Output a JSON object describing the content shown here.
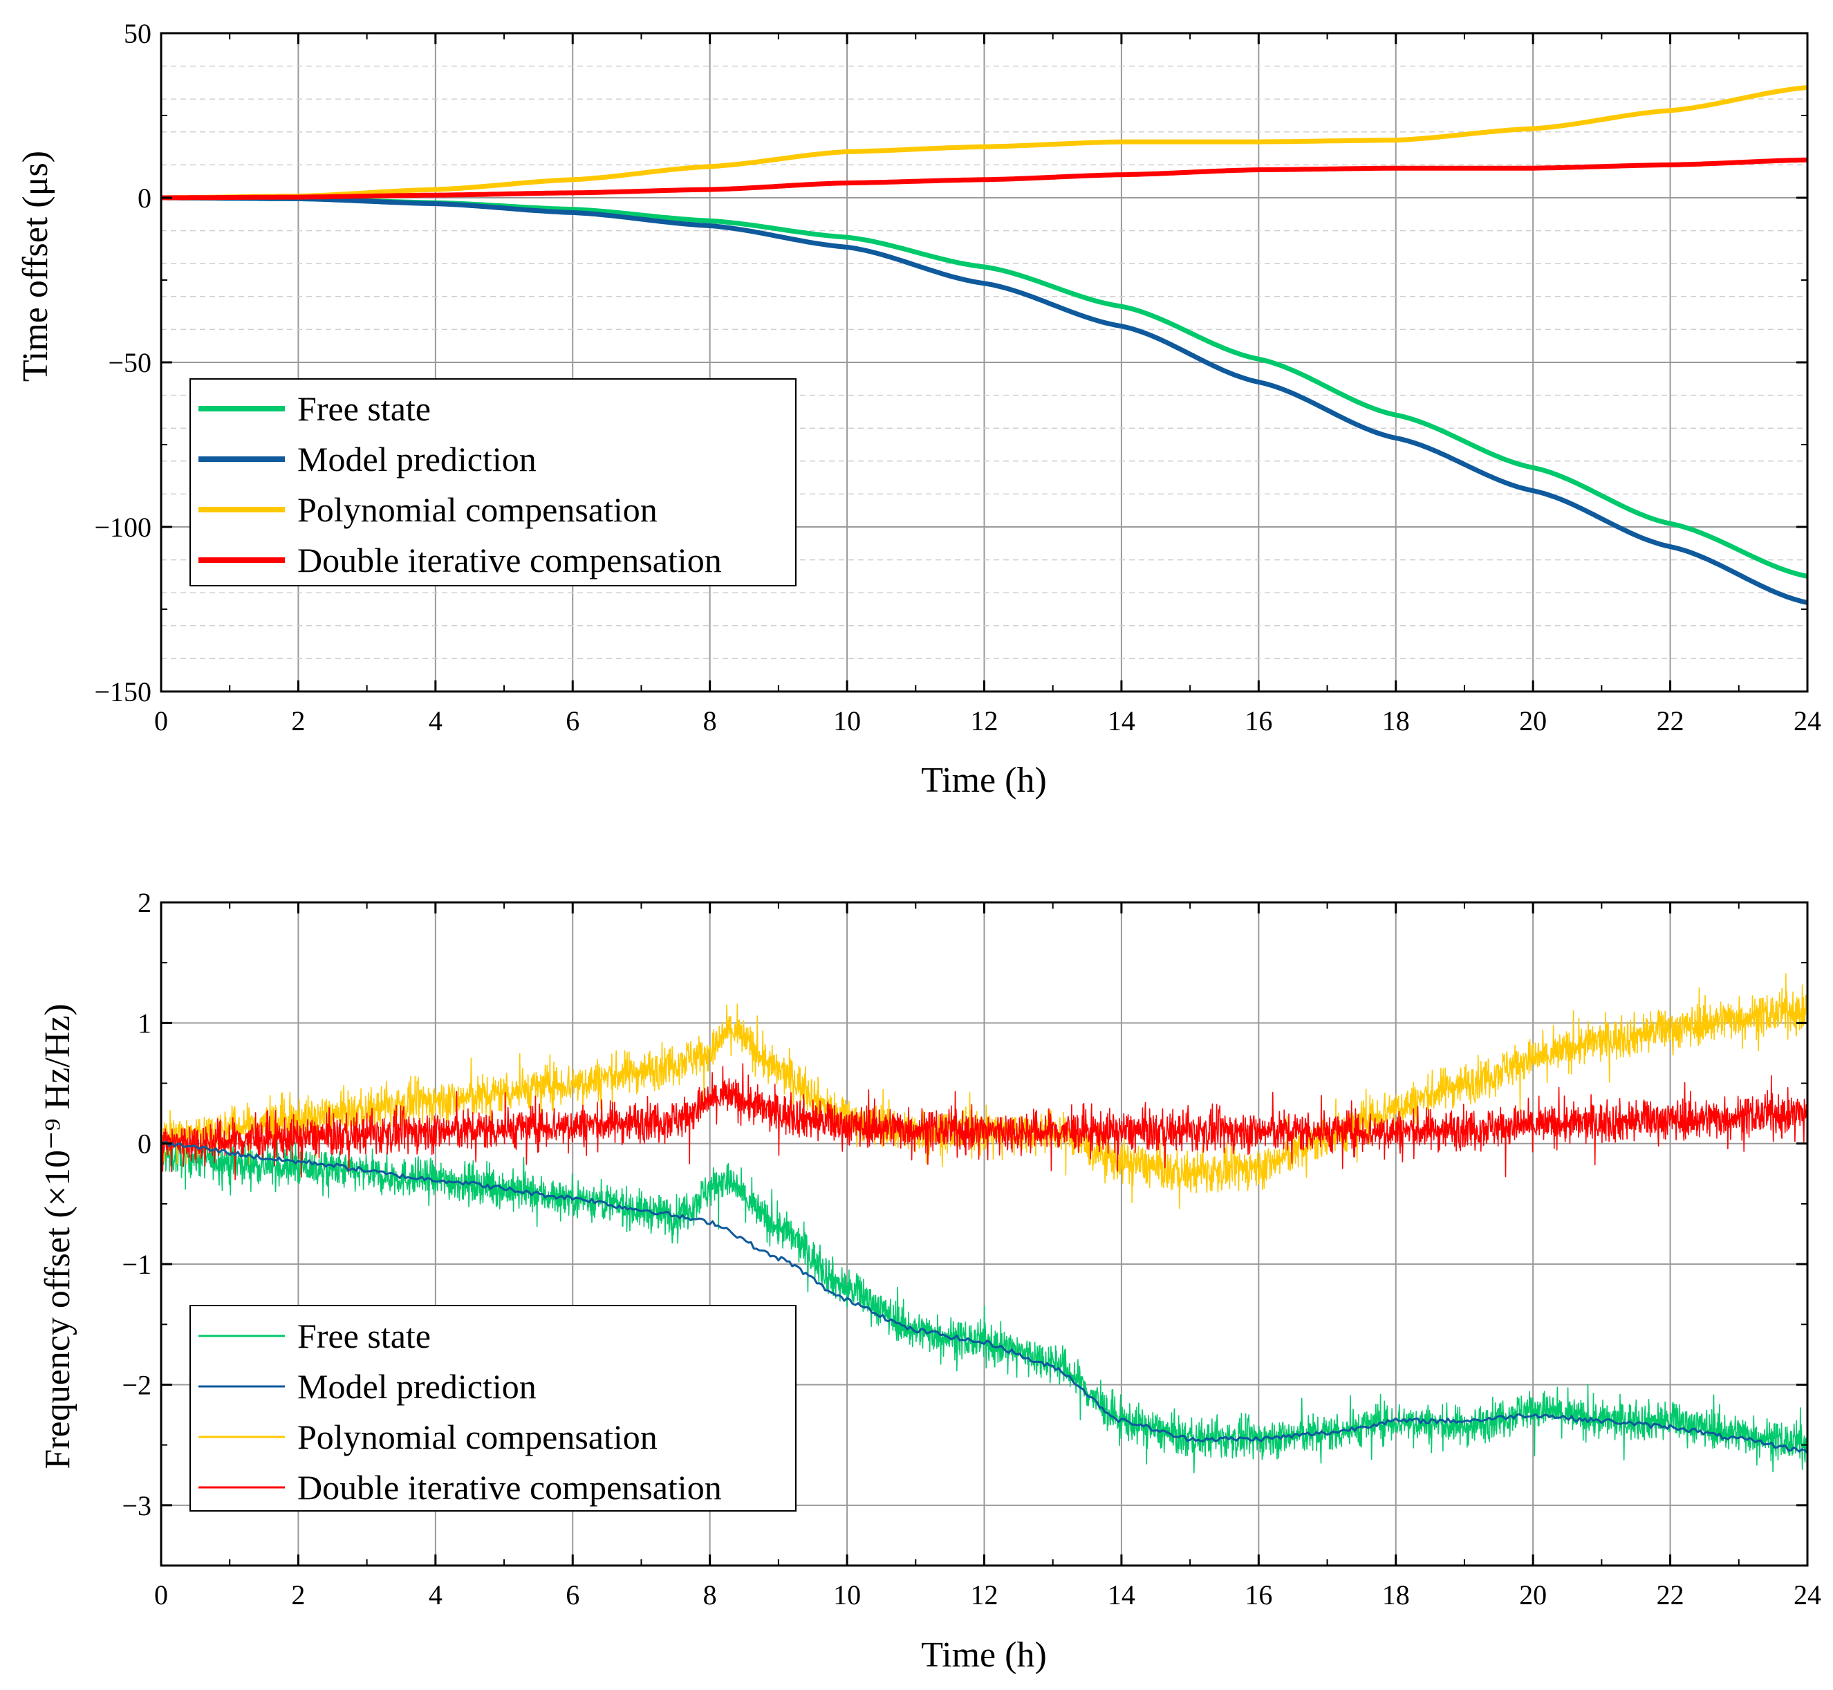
{
  "chart_data": [
    {
      "type": "line",
      "id": "time-offset",
      "title": "",
      "xlabel": "Time (h)",
      "ylabel": "Time offset (μs)",
      "xlim": [
        0,
        24
      ],
      "ylim": [
        -150,
        50
      ],
      "xticks": [
        0,
        2,
        4,
        6,
        8,
        10,
        12,
        14,
        16,
        18,
        20,
        22,
        24
      ],
      "yticks": [
        -150,
        -100,
        -50,
        0,
        50
      ],
      "ytick_labels": [
        "−150",
        "−100",
        "−50",
        "0",
        "50"
      ],
      "grid": true,
      "legend_position": "lower-left",
      "series": [
        {
          "name": "Free state",
          "color": "#00c96b",
          "x": [
            0,
            2,
            4,
            6,
            8,
            10,
            12,
            14,
            16,
            18,
            20,
            22,
            24
          ],
          "y": [
            0,
            -0.3,
            -1.5,
            -3.5,
            -7,
            -12,
            -21,
            -33,
            -49,
            -66,
            -82,
            -99,
            -115
          ]
        },
        {
          "name": "Model prediction",
          "color": "#0e5a9c",
          "x": [
            0,
            2,
            4,
            6,
            8,
            10,
            12,
            14,
            16,
            18,
            20,
            22,
            24
          ],
          "y": [
            0,
            -0.3,
            -1.8,
            -4.5,
            -8.5,
            -15,
            -26,
            -39,
            -56,
            -73,
            -89,
            -106,
            -123
          ]
        },
        {
          "name": "Polynomial compensation",
          "color": "#ffc800",
          "x": [
            0,
            2,
            4,
            6,
            8,
            10,
            12,
            14,
            16,
            18,
            20,
            22,
            24
          ],
          "y": [
            0,
            0.5,
            2.5,
            5.5,
            9.5,
            14,
            15.5,
            17,
            17,
            17.5,
            21,
            26.5,
            33.5
          ]
        },
        {
          "name": "Double iterative compensation",
          "color": "#ff0000",
          "x": [
            0,
            2,
            4,
            6,
            8,
            10,
            12,
            14,
            16,
            18,
            20,
            22,
            24
          ],
          "y": [
            0,
            0.2,
            0.8,
            1.5,
            2.5,
            4.5,
            5.5,
            7,
            8.5,
            9,
            9,
            10,
            11.5
          ]
        }
      ]
    },
    {
      "type": "line",
      "id": "frequency-offset",
      "title": "",
      "xlabel": "Time (h)",
      "ylabel": "Frequency offset (×10⁻⁹ Hz/Hz)",
      "xlim": [
        0,
        24
      ],
      "ylim": [
        -3.5,
        2
      ],
      "xticks": [
        0,
        2,
        4,
        6,
        8,
        10,
        12,
        14,
        16,
        18,
        20,
        22,
        24
      ],
      "yticks": [
        -3,
        -2,
        -1,
        0,
        1,
        2
      ],
      "ytick_labels": [
        "−3",
        "−2",
        "−1",
        "0",
        "1",
        "2"
      ],
      "grid": true,
      "legend_position": "lower-left",
      "series": [
        {
          "name": "Free state",
          "color": "#00c96b",
          "noise": 0.28,
          "x": [
            0,
            2,
            4,
            6,
            7.5,
            8.2,
            9,
            10,
            11,
            12,
            13,
            14,
            15,
            16,
            17,
            18,
            19,
            20,
            21,
            22,
            23,
            24
          ],
          "y": [
            -0.1,
            -0.2,
            -0.3,
            -0.45,
            -0.6,
            -0.3,
            -0.7,
            -1.2,
            -1.55,
            -1.65,
            -1.8,
            -2.3,
            -2.45,
            -2.45,
            -2.4,
            -2.3,
            -2.35,
            -2.2,
            -2.3,
            -2.3,
            -2.4,
            -2.5
          ]
        },
        {
          "name": "Model prediction",
          "color": "#0e5a9c",
          "noise": 0,
          "x": [
            0,
            2,
            4,
            6,
            7,
            8,
            9,
            10,
            11,
            12,
            13,
            14,
            15,
            16,
            17,
            18,
            19,
            20,
            21,
            22,
            23,
            24
          ],
          "y": [
            0,
            -0.15,
            -0.3,
            -0.45,
            -0.55,
            -0.65,
            -0.95,
            -1.3,
            -1.55,
            -1.65,
            -1.85,
            -2.3,
            -2.45,
            -2.45,
            -2.4,
            -2.3,
            -2.3,
            -2.25,
            -2.3,
            -2.35,
            -2.45,
            -2.55
          ]
        },
        {
          "name": "Polynomial compensation",
          "color": "#ffc800",
          "noise": 0.3,
          "x": [
            0,
            2,
            4,
            6,
            7,
            8,
            8.3,
            9,
            10,
            11,
            12,
            13,
            14,
            15,
            16,
            17,
            18,
            19,
            20,
            21,
            22,
            23,
            24
          ],
          "y": [
            0.05,
            0.2,
            0.35,
            0.5,
            0.6,
            0.75,
            0.95,
            0.6,
            0.2,
            0.1,
            0.1,
            0.1,
            -0.15,
            -0.25,
            -0.2,
            0.05,
            0.3,
            0.5,
            0.7,
            0.85,
            0.95,
            1.05,
            1.1
          ]
        },
        {
          "name": "Double iterative compensation",
          "color": "#ff0000",
          "noise": 0.3,
          "x": [
            0,
            2,
            4,
            6,
            7.5,
            8.2,
            9,
            10,
            12,
            14,
            16,
            18,
            20,
            22,
            24
          ],
          "y": [
            0,
            0.05,
            0.1,
            0.15,
            0.2,
            0.4,
            0.25,
            0.15,
            0.1,
            0.1,
            0.1,
            0.1,
            0.15,
            0.2,
            0.25
          ]
        }
      ]
    }
  ]
}
